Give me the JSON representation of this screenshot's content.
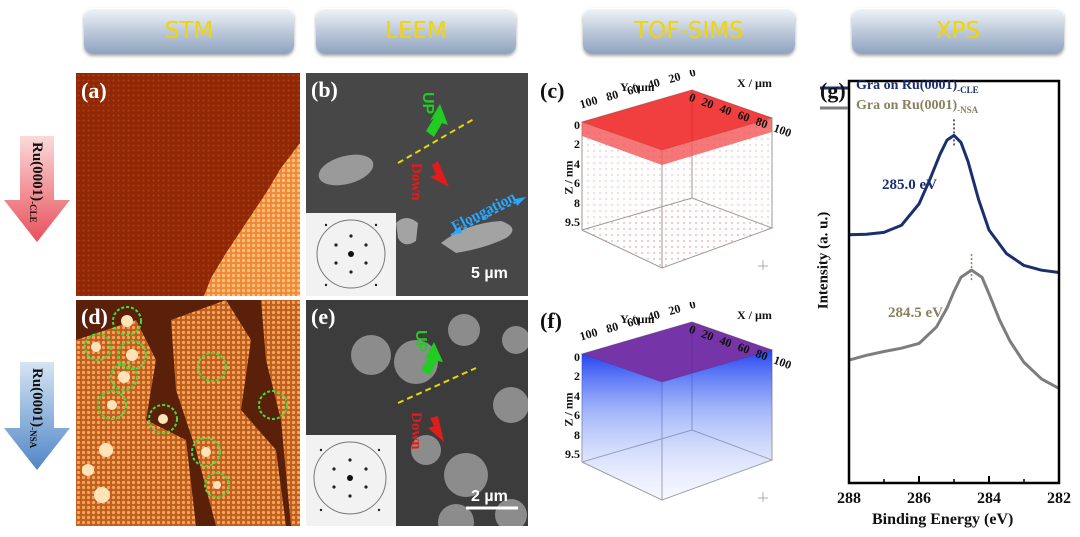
{
  "headers": [
    "STM",
    "LEEM",
    "TOF-SIMS",
    "XPS"
  ],
  "rows": [
    {
      "substrate": "Ru(0001)",
      "suffix": "-CLE"
    },
    {
      "substrate": "Ru(0001)",
      "suffix": "-NSA"
    }
  ],
  "panels": {
    "a": "(a)",
    "b": "(b)",
    "c": "(c)",
    "d": "(d)",
    "e": "(e)",
    "f": "(f)",
    "g": "(g)"
  },
  "leem_b": {
    "up": "UP",
    "down": "Down",
    "elongation": "Elongation",
    "scale": "5 µm"
  },
  "leem_e": {
    "up": "UP",
    "down": "Down",
    "scale": "2 µm"
  },
  "tof": {
    "y_axis": "Y / µm",
    "x_axis": "X / µm",
    "z_axis": "Z / nm",
    "y_ticks": [
      "100",
      "80",
      "60",
      "40",
      "20",
      "0"
    ],
    "x_ticks": [
      "0",
      "20",
      "40",
      "60",
      "80",
      "100"
    ],
    "z_ticks": [
      "0",
      "2",
      "4",
      "6",
      "8",
      "9.5"
    ]
  },
  "colors": {
    "header_text": "#f4d400",
    "cle": "#1a2f6e",
    "nsa": "#7d7d7d",
    "cle_arrow": "#e8505a",
    "nsa_arrow": "#4f86c6",
    "up_arrow": "#22cc22",
    "down_arrow": "#e01c1c"
  },
  "chart_data": {
    "type": "line",
    "xlabel": "Binding Energy (eV)",
    "ylabel": "Intensity (a. u.)",
    "xlim": [
      288,
      282
    ],
    "x_ticks": [
      "288",
      "286",
      "284",
      "282"
    ],
    "legend": [
      "Gra on Ru(0001)",
      "Gra on Ru(0001)"
    ],
    "legend_suffix": [
      "-CLE",
      "-NSA"
    ],
    "series": [
      {
        "name": "Gra on Ru(0001)-CLE",
        "peak": 285.0,
        "peak_label": "285.0 eV",
        "x": [
          288,
          287.5,
          287,
          286.5,
          286,
          285.7,
          285.4,
          285.2,
          285.0,
          284.8,
          284.6,
          284.3,
          284.0,
          283.5,
          283,
          282.5,
          282
        ],
        "y": [
          5.25,
          5.26,
          5.3,
          5.45,
          5.9,
          6.4,
          6.95,
          7.25,
          7.35,
          7.2,
          6.8,
          6.0,
          5.35,
          4.85,
          4.6,
          4.5,
          4.45
        ]
      },
      {
        "name": "Gra on Ru(0001)-NSA",
        "peak": 284.5,
        "peak_label": "284.5 eV",
        "x": [
          288,
          287.5,
          287,
          286.5,
          286,
          285.5,
          285.2,
          285.0,
          284.8,
          284.5,
          284.2,
          284.0,
          283.7,
          283.4,
          283,
          282.5,
          282
        ],
        "y": [
          2.6,
          2.7,
          2.78,
          2.85,
          2.95,
          3.3,
          3.7,
          4.05,
          4.35,
          4.5,
          4.35,
          4.0,
          3.45,
          3.0,
          2.55,
          2.2,
          2.0
        ]
      }
    ]
  }
}
